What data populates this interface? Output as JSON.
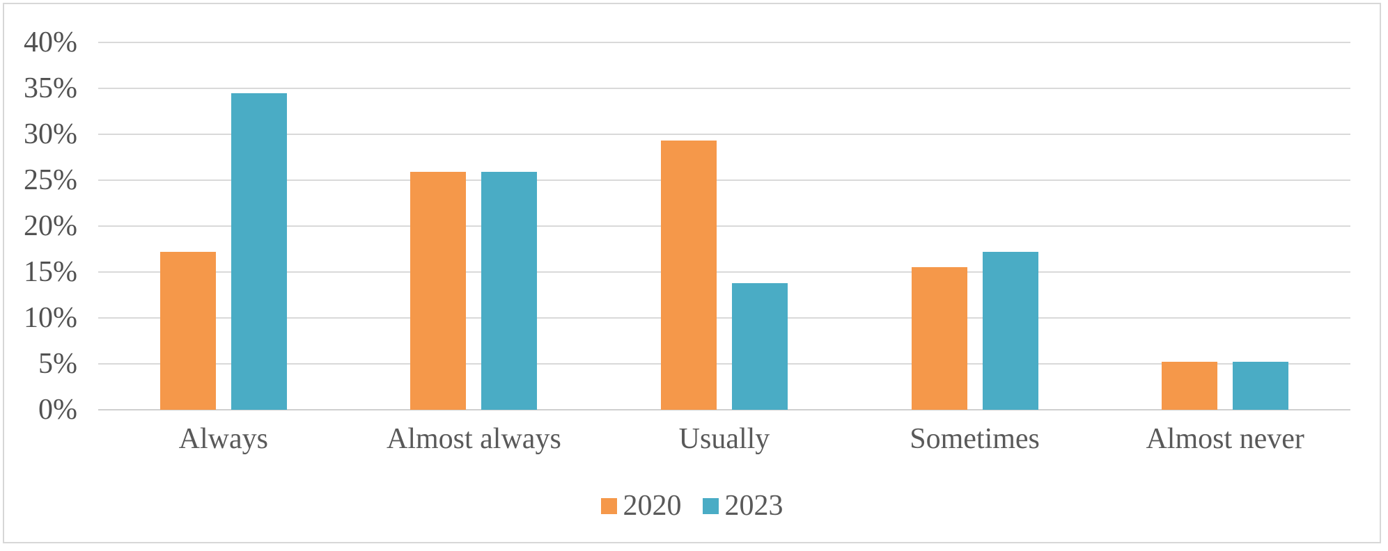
{
  "chart_data": {
    "type": "bar",
    "title": "",
    "xlabel": "",
    "ylabel": "",
    "categories": [
      "Always",
      "Almost always",
      "Usually",
      "Sometimes",
      "Almost never"
    ],
    "series": [
      {
        "name": "2020",
        "color": "#F5984A",
        "values": [
          17.2,
          25.9,
          29.3,
          15.5,
          5.2
        ]
      },
      {
        "name": "2023",
        "color": "#4AACC5",
        "values": [
          34.5,
          25.9,
          13.8,
          17.2,
          5.2
        ]
      }
    ],
    "ylim": [
      0,
      40
    ],
    "yticks": [
      {
        "value": 0,
        "label": "0%"
      },
      {
        "value": 5,
        "label": "5%"
      },
      {
        "value": 10,
        "label": "10%"
      },
      {
        "value": 15,
        "label": "15%"
      },
      {
        "value": 20,
        "label": "20%"
      },
      {
        "value": 25,
        "label": "25%"
      },
      {
        "value": 30,
        "label": "30%"
      },
      {
        "value": 35,
        "label": "35%"
      },
      {
        "value": 40,
        "label": "40%"
      }
    ],
    "grid": "horizontal",
    "legend_position": "bottom-center"
  },
  "styles": {
    "background": "#FFFFFF",
    "frame_color": "#D7D7D7",
    "gridline_color": "#D9D9D9",
    "axis_line_color": "#CFCFCF",
    "tick_text_color": "#515151",
    "label_text_color": "#595959"
  }
}
